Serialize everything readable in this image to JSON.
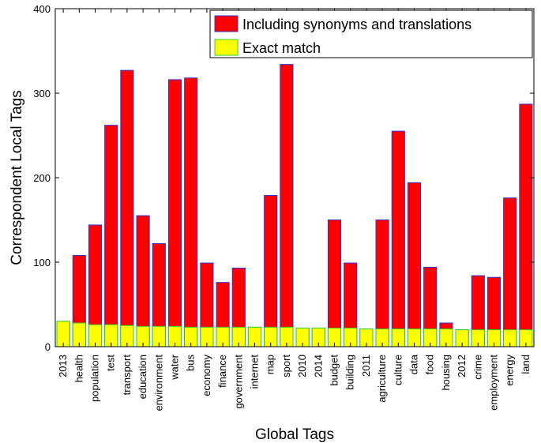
{
  "chart_data": {
    "type": "bar",
    "stacked": false,
    "overlay": true,
    "categories": [
      "2013",
      "health",
      "population",
      "test",
      "transport",
      "education",
      "environment",
      "water",
      "bus",
      "economy",
      "finance",
      "government",
      "internet",
      "map",
      "sport",
      "2010",
      "2014",
      "budget",
      "building",
      "2011",
      "agriculture",
      "culture",
      "data",
      "food",
      "housing",
      "2012",
      "crime",
      "employment",
      "energy",
      "land"
    ],
    "series": [
      {
        "name": "Including synonyms and translations",
        "color": "#ff0000",
        "edge_color": "#3333cc",
        "values": [
          30,
          108,
          144,
          262,
          327,
          155,
          122,
          316,
          318,
          99,
          76,
          93,
          23,
          179,
          334,
          22,
          22,
          150,
          99,
          21,
          150,
          255,
          194,
          94,
          28,
          20,
          84,
          82,
          176,
          287
        ]
      },
      {
        "name": "Exact match",
        "color": "#ffff00",
        "edge_color": "#33cc33",
        "values": [
          30,
          28,
          26,
          26,
          25,
          24,
          24,
          24,
          23,
          23,
          23,
          23,
          23,
          23,
          23,
          22,
          22,
          22,
          22,
          21,
          21,
          21,
          21,
          21,
          21,
          20,
          20,
          20,
          20,
          20
        ]
      }
    ],
    "xlabel": "Global Tags",
    "ylabel": "Correspondent Local Tags",
    "ylim": [
      0,
      400
    ],
    "yticks": [
      0,
      100,
      200,
      300,
      400
    ],
    "grid": false,
    "legend_position": "top-right"
  }
}
